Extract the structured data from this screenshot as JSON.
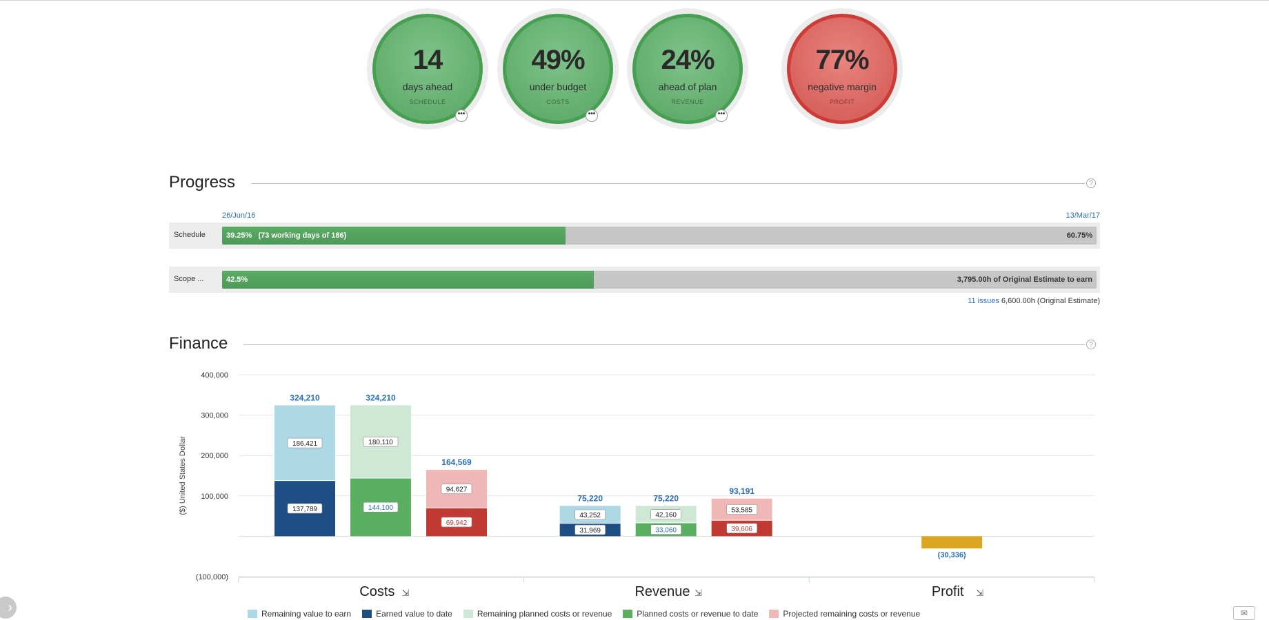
{
  "kpis": [
    {
      "value": "14",
      "label": "days ahead",
      "category": "SCHEDULE",
      "status": "green",
      "more_icon": "ellipsis-icon"
    },
    {
      "value": "49%",
      "label": "under budget",
      "category": "COSTS",
      "status": "green",
      "more_icon": "ellipsis-icon"
    },
    {
      "value": "24%",
      "label": "ahead of plan",
      "category": "REVENUE",
      "status": "green",
      "more_icon": "ellipsis-icon"
    },
    {
      "value": "77%",
      "label": "negative margin",
      "category": "PROFIT",
      "status": "red"
    }
  ],
  "progress": {
    "title": "Progress",
    "help": "?",
    "start_date": "26/Jun/16",
    "end_date": "13/Mar/17",
    "schedule": {
      "label": "Schedule",
      "percent": 39.25,
      "done_text": "39.25%   (73 working days of 186)",
      "remaining_text": "60.75%"
    },
    "scope": {
      "label": "Scope ...",
      "percent": 42.5,
      "done_text": "42.5%",
      "remaining_text": "3,795.00h of Original Estimate to earn"
    },
    "issues_link": "11 issues",
    "estimate_text": "6,600.00h (Original Estimate)"
  },
  "finance": {
    "title": "Finance",
    "help": "?"
  },
  "colors": {
    "green_status": "#5aa566",
    "red_status": "#d45853",
    "remaining_value": "#add8e6",
    "earned_value": "#1f4e85",
    "remaining_planned": "#cfe8d6",
    "planned_to_date": "#5aaf61",
    "projected_remaining": "#efb8b6",
    "actual_to_date": "#c03a33",
    "profit": "#daa520",
    "total_label": "#2a6ebb"
  },
  "chart_data": {
    "type": "bar",
    "stacked": true,
    "ylabel": "($) United States Dollar",
    "ylim": [
      -100000,
      400000
    ],
    "yticks": [
      {
        "value": 400000,
        "label": "400,000"
      },
      {
        "value": 300000,
        "label": "300,000"
      },
      {
        "value": 200000,
        "label": "200,000"
      },
      {
        "value": 100000,
        "label": "100,000"
      },
      {
        "value": -100000,
        "label": "(100,000)"
      }
    ],
    "groups": [
      {
        "name": "Costs",
        "icon": "drilldown-icon",
        "bars": [
          {
            "bottom": 137789,
            "top": 186421,
            "bottom_label": "137,789",
            "top_label": "186,421",
            "total_label": "324,210",
            "bottom_color": "#1f4e85",
            "top_color": "#add8e6",
            "bottom_text_color": "#222"
          },
          {
            "bottom": 144100,
            "top": 180110,
            "bottom_label": "144,100",
            "top_label": "180,110",
            "total_label": "324,210",
            "bottom_color": "#5aaf61",
            "top_color": "#cfe8d6",
            "bottom_text_color": "#2a6ebb"
          },
          {
            "bottom": 69942,
            "top": 94627,
            "bottom_label": "69,942",
            "top_label": "94,627",
            "total_label": "164,569",
            "bottom_color": "#c03a33",
            "top_color": "#efb8b6",
            "bottom_text_color": "#c03a33"
          }
        ]
      },
      {
        "name": "Revenue",
        "icon": "drilldown-icon",
        "bars": [
          {
            "bottom": 31969,
            "top": 43252,
            "bottom_label": "31,969",
            "top_label": "43,252",
            "total_label": "75,220",
            "bottom_color": "#1f4e85",
            "top_color": "#add8e6",
            "bottom_text_color": "#222"
          },
          {
            "bottom": 33060,
            "top": 42160,
            "bottom_label": "33,060",
            "top_label": "42,160",
            "total_label": "75,220",
            "bottom_color": "#5aaf61",
            "top_color": "#cfe8d6",
            "bottom_text_color": "#2a6ebb"
          },
          {
            "bottom": 39606,
            "top": 53585,
            "bottom_label": "39,606",
            "top_label": "53,585",
            "total_label": "93,191",
            "bottom_color": "#c03a33",
            "top_color": "#efb8b6",
            "bottom_text_color": "#c03a33"
          }
        ]
      },
      {
        "name": "Profit",
        "icon": "drilldown-icon",
        "bars": [
          {
            "value": -30336,
            "total_label": "(30,336)",
            "color": "#daa520"
          }
        ]
      }
    ],
    "legend_position": "bottom",
    "legend": [
      {
        "name": "Remaining value to earn",
        "color": "#add8e6"
      },
      {
        "name": "Earned value to date",
        "color": "#1f4e85"
      },
      {
        "name": "Remaining planned costs or revenue",
        "color": "#cfe8d6"
      },
      {
        "name": "Planned costs or revenue to date",
        "color": "#5aaf61"
      },
      {
        "name": "Projected remaining costs or revenue",
        "color": "#efb8b6"
      }
    ]
  }
}
